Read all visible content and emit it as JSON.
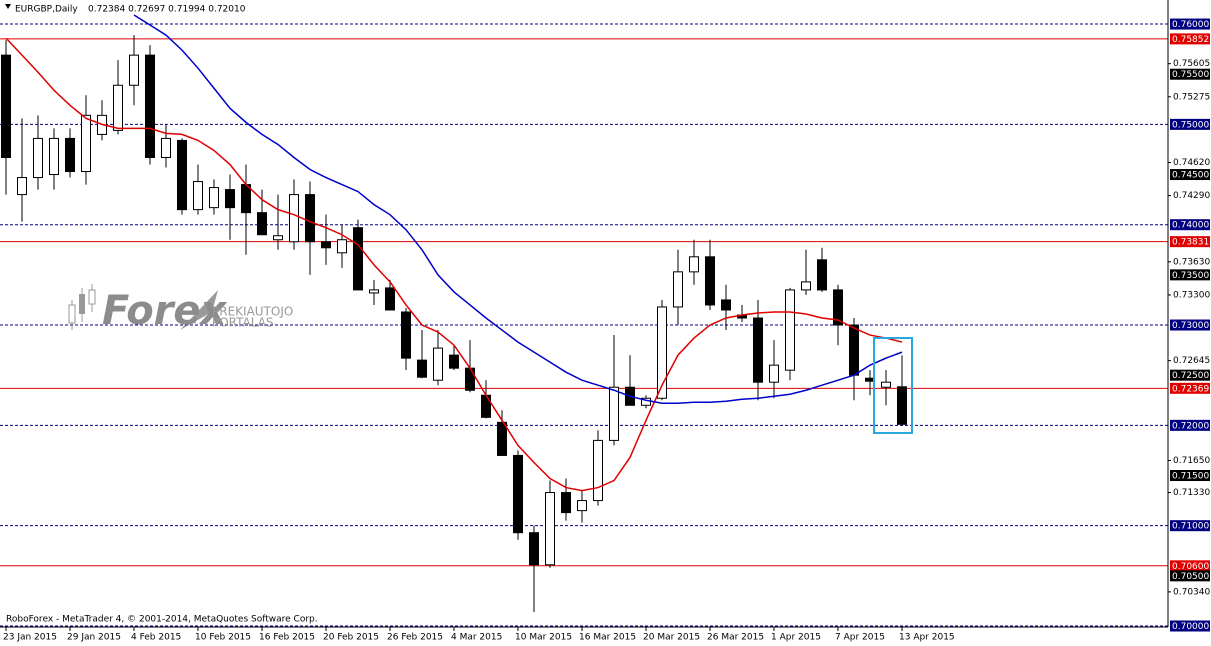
{
  "chart_data": {
    "type": "candlestick",
    "title": "EURGBP,Daily",
    "ohlc_header": "0.72384 0.72697 0.71994 0.72010",
    "footer": "RoboForex - MetaTrader 4, © 2001-2014, MetaQuotes Software Corp.",
    "watermark": {
      "brand": "Forex",
      "line1": "PREKIAUTOJO",
      "line2": "PORTALAS"
    },
    "categories": [
      "23 Jan 2015",
      null,
      null,
      null,
      "29 Jan 2015",
      null,
      null,
      null,
      "4 Feb 2015",
      null,
      null,
      null,
      "10 Feb 2015",
      null,
      null,
      null,
      "16 Feb 2015",
      null,
      null,
      null,
      "20 Feb 2015",
      null,
      null,
      null,
      "26 Feb 2015",
      null,
      null,
      null,
      "4 Mar 2015",
      null,
      null,
      null,
      "10 Mar 2015",
      null,
      null,
      null,
      "16 Mar 2015",
      null,
      null,
      null,
      "20 Mar 2015",
      null,
      null,
      null,
      "26 Mar 2015",
      null,
      null,
      null,
      "1 Apr 2015",
      null,
      null,
      null,
      "7 Apr 2015",
      null,
      null,
      null,
      "13 Apr 2015"
    ],
    "open": [
      0.7569,
      0.743,
      0.7447,
      0.745,
      0.7486,
      0.7453,
      0.749,
      0.7494,
      0.7539,
      0.7569,
      0.7467,
      0.7484,
      0.7415,
      0.7417,
      0.7435,
      0.744,
      0.7412,
      0.7385,
      0.7383,
      0.743,
      0.7383,
      0.7372,
      0.7397,
      0.7332,
      0.7337,
      0.7313,
      0.7265,
      0.7245,
      0.727,
      0.7257,
      0.723,
      0.7203,
      0.717,
      0.7093,
      0.7061,
      0.7133,
      0.7115,
      0.7125,
      0.7185,
      0.7238,
      0.722,
      0.7227,
      0.7318,
      0.7353,
      0.7368,
      0.7325,
      0.731,
      0.7307,
      0.7243,
      0.7255,
      0.7335,
      0.7365,
      0.7335,
      0.73,
      0.7247,
      0.7238,
      0.72384
    ],
    "high": [
      0.7584,
      0.7506,
      0.7509,
      0.7496,
      0.7496,
      0.7529,
      0.7524,
      0.7564,
      0.7589,
      0.7579,
      0.75,
      0.7486,
      0.746,
      0.7445,
      0.745,
      0.746,
      0.7435,
      0.743,
      0.7445,
      0.7443,
      0.741,
      0.74,
      0.7405,
      0.7345,
      0.7345,
      0.7317,
      0.7295,
      0.7295,
      0.728,
      0.7285,
      0.7245,
      0.7215,
      0.7175,
      0.71,
      0.7145,
      0.7147,
      0.7135,
      0.7195,
      0.729,
      0.727,
      0.723,
      0.7325,
      0.7375,
      0.7385,
      0.7385,
      0.734,
      0.732,
      0.7325,
      0.7285,
      0.7337,
      0.7375,
      0.7377,
      0.734,
      0.7307,
      0.7255,
      0.7255,
      0.72697
    ],
    "low": [
      0.743,
      0.7403,
      0.7435,
      0.7435,
      0.7447,
      0.744,
      0.7484,
      0.749,
      0.7519,
      0.746,
      0.7457,
      0.741,
      0.741,
      0.741,
      0.7385,
      0.737,
      0.739,
      0.7375,
      0.7375,
      0.735,
      0.736,
      0.7357,
      0.7335,
      0.732,
      0.7315,
      0.7255,
      0.7247,
      0.724,
      0.7255,
      0.7233,
      0.7207,
      0.717,
      0.7086,
      0.7014,
      0.7058,
      0.7105,
      0.7103,
      0.712,
      0.718,
      0.722,
      0.7217,
      0.7225,
      0.73,
      0.734,
      0.7315,
      0.7295,
      0.7303,
      0.7225,
      0.7227,
      0.7245,
      0.733,
      0.7333,
      0.728,
      0.7225,
      0.723,
      0.722,
      0.71994
    ],
    "close": [
      0.7467,
      0.7447,
      0.7486,
      0.7486,
      0.7453,
      0.7509,
      0.7509,
      0.7539,
      0.7569,
      0.7467,
      0.7486,
      0.7415,
      0.7443,
      0.7437,
      0.7417,
      0.7412,
      0.739,
      0.7389,
      0.743,
      0.7383,
      0.7377,
      0.7385,
      0.7335,
      0.7335,
      0.7315,
      0.7267,
      0.7248,
      0.7277,
      0.7257,
      0.7235,
      0.7208,
      0.717,
      0.7093,
      0.7061,
      0.7133,
      0.7113,
      0.7125,
      0.7185,
      0.7238,
      0.722,
      0.7227,
      0.7318,
      0.7353,
      0.7368,
      0.732,
      0.7315,
      0.7307,
      0.7243,
      0.726,
      0.7335,
      0.7343,
      0.7335,
      0.73,
      0.725,
      0.7244,
      0.7243,
      0.7201
    ],
    "up_color": "#ffffff",
    "down_color": "#000000",
    "overlays": [
      {
        "color": "#e00000",
        "values": [
          0.7586,
          0.7569,
          0.7552,
          0.7534,
          0.7519,
          0.7506,
          0.75,
          0.7496,
          0.7496,
          0.7496,
          0.7491,
          0.749,
          0.7484,
          0.7474,
          0.746,
          0.744,
          0.7425,
          0.7415,
          0.741,
          0.7403,
          0.7397,
          0.739,
          0.738,
          0.736,
          0.7343,
          0.732,
          0.73,
          0.7293,
          0.728,
          0.7257,
          0.723,
          0.7205,
          0.718,
          0.7163,
          0.7147,
          0.7138,
          0.7135,
          0.7138,
          0.7145,
          0.7168,
          0.7205,
          0.724,
          0.727,
          0.7287,
          0.73,
          0.7307,
          0.731,
          0.7312,
          0.7313,
          0.7313,
          0.7311,
          0.7307,
          0.7305,
          0.7297,
          0.729,
          0.7287,
          0.7283
        ]
      },
      {
        "color": "#0000cc",
        "values": [
          null,
          null,
          null,
          null,
          null,
          null,
          null,
          null,
          0.7609,
          0.7599,
          0.7589,
          0.7574,
          0.7556,
          0.7536,
          0.7516,
          0.7502,
          0.749,
          0.748,
          0.7467,
          0.7455,
          0.7447,
          0.744,
          0.7433,
          0.742,
          0.741,
          0.7395,
          0.7375,
          0.735,
          0.7333,
          0.732,
          0.7307,
          0.7295,
          0.7283,
          0.7273,
          0.7263,
          0.7253,
          0.7245,
          0.724,
          0.7235,
          0.7229,
          0.7225,
          0.7222,
          0.7222,
          0.7223,
          0.7223,
          0.7224,
          0.7226,
          0.7227,
          0.7229,
          0.7231,
          0.7235,
          0.724,
          0.7245,
          0.725,
          0.726,
          0.7267,
          0.7273
        ]
      }
    ],
    "ylim": [
      0.7,
      0.7614
    ],
    "yticks": [
      0.75605,
      0.75275,
      {
        "value": 0.7462,
        "label": "0.74620"
      },
      {
        "value": 0.7429,
        "label": "0.74290"
      },
      {
        "value": 0.7363,
        "label": "0.73630"
      },
      {
        "value": 0.733,
        "label": "0.73300"
      },
      0.72645,
      {
        "value": 0.7165,
        "label": "0.71650"
      },
      {
        "value": 0.7133,
        "label": "0.71330"
      },
      {
        "value": 0.7034,
        "label": "0.70340"
      }
    ],
    "levels": [
      {
        "value": 0.76,
        "label": "0.76000",
        "color": "#000080",
        "line": "dashed"
      },
      {
        "value": 0.75852,
        "label": "0.75852",
        "color": "#e00000",
        "line": "solid"
      },
      {
        "value": 0.755,
        "label": "0.75500",
        "color": "#000000"
      },
      {
        "value": 0.75,
        "label": "0.75000",
        "color": "#000080",
        "line": "dashed"
      },
      {
        "value": 0.745,
        "label": "0.74500",
        "color": "#000000"
      },
      {
        "value": 0.74,
        "label": "0.74000",
        "color": "#000080",
        "line": "dashed"
      },
      {
        "value": 0.73831,
        "label": "0.73831",
        "color": "#e00000",
        "line": "solid"
      },
      {
        "value": 0.735,
        "label": "0.73500",
        "color": "#000000"
      },
      {
        "value": 0.73,
        "label": "0.73000",
        "color": "#000080",
        "line": "dashed"
      },
      {
        "value": 0.725,
        "label": "0.72500",
        "color": "#000000"
      },
      {
        "value": 0.72369,
        "label": "0.72369",
        "color": "#e00000",
        "line": "solid"
      },
      {
        "value": 0.72,
        "label": "0.72000",
        "color": "#000080",
        "line": "dashed"
      },
      {
        "value": 0.715,
        "label": "0.71500",
        "color": "#000000"
      },
      {
        "value": 0.71,
        "label": "0.71000",
        "color": "#000080",
        "line": "dashed"
      },
      {
        "value": 0.706,
        "label": "0.70600",
        "color": "#e00000",
        "line": "solid"
      },
      {
        "value": 0.705,
        "label": "0.70500",
        "color": "#000000"
      },
      {
        "value": 0.7,
        "label": "0.70000",
        "color": "#000080",
        "line": "dashed"
      }
    ]
  }
}
